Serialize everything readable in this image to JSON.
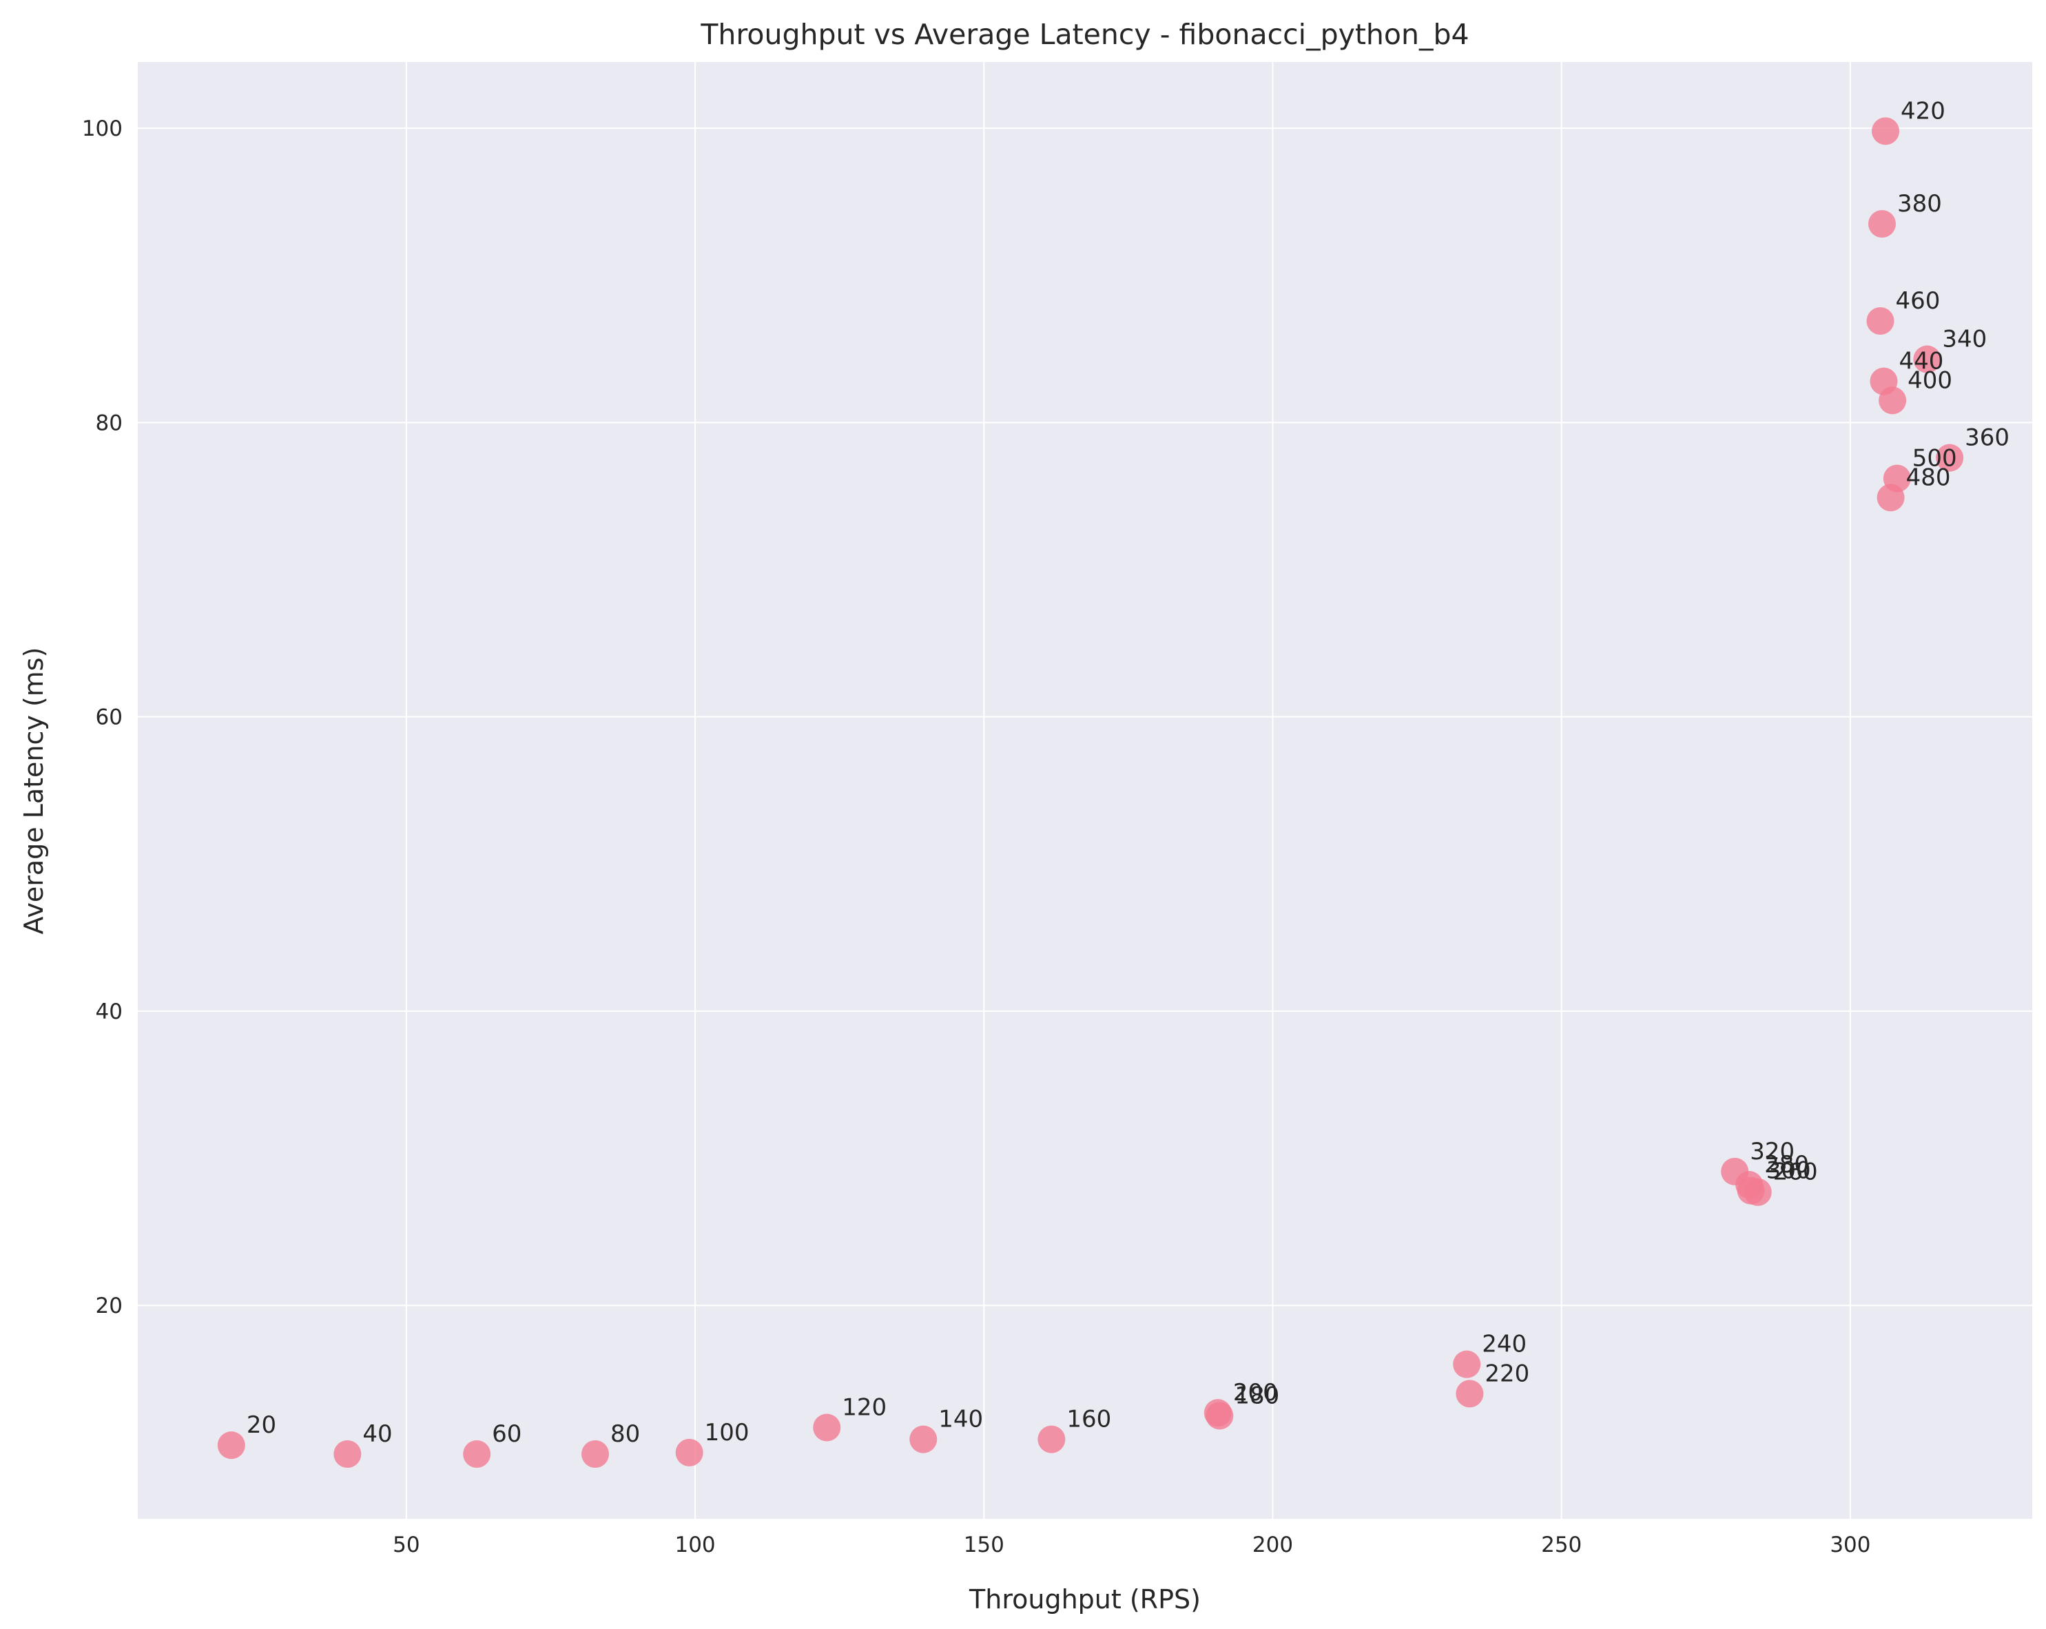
{
  "chart_data": {
    "type": "scatter",
    "title": "Throughput vs Average Latency - fibonacci_python_b4",
    "xlabel": "Throughput (RPS)",
    "ylabel": "Average Latency (ms)",
    "xlim": [
      3.5,
      331.5
    ],
    "ylim": [
      5.5,
      104.5
    ],
    "xticks": [
      "50",
      "100",
      "150",
      "200",
      "250",
      "300"
    ],
    "yticks": [
      "20",
      "40",
      "60",
      "80",
      "100"
    ],
    "grid": true,
    "legend": "none",
    "point_color": "#f37b91",
    "background_color": "#eaeaf2",
    "points": [
      {
        "label": "20",
        "x": 19.7,
        "y": 10.5
      },
      {
        "label": "40",
        "x": 39.8,
        "y": 9.9
      },
      {
        "label": "60",
        "x": 62.2,
        "y": 9.9
      },
      {
        "label": "80",
        "x": 82.7,
        "y": 9.9
      },
      {
        "label": "100",
        "x": 99.0,
        "y": 10.0
      },
      {
        "label": "120",
        "x": 122.8,
        "y": 11.7
      },
      {
        "label": "140",
        "x": 139.5,
        "y": 10.9
      },
      {
        "label": "160",
        "x": 161.7,
        "y": 10.9
      },
      {
        "label": "180",
        "x": 190.8,
        "y": 12.5
      },
      {
        "label": "200",
        "x": 190.5,
        "y": 12.7
      },
      {
        "label": "220",
        "x": 234.1,
        "y": 14.0
      },
      {
        "label": "240",
        "x": 233.6,
        "y": 16.0
      },
      {
        "label": "260",
        "x": 284.0,
        "y": 27.7
      },
      {
        "label": "280",
        "x": 282.5,
        "y": 28.2
      },
      {
        "label": "300",
        "x": 282.8,
        "y": 27.8
      },
      {
        "label": "320",
        "x": 280.0,
        "y": 29.1
      },
      {
        "label": "340",
        "x": 313.3,
        "y": 84.3
      },
      {
        "label": "360",
        "x": 317.2,
        "y": 77.6
      },
      {
        "label": "380",
        "x": 305.5,
        "y": 93.5
      },
      {
        "label": "400",
        "x": 307.3,
        "y": 81.5
      },
      {
        "label": "420",
        "x": 306.1,
        "y": 99.8
      },
      {
        "label": "440",
        "x": 305.8,
        "y": 82.8
      },
      {
        "label": "460",
        "x": 305.2,
        "y": 86.9
      },
      {
        "label": "480",
        "x": 307.0,
        "y": 74.9
      },
      {
        "label": "500",
        "x": 308.1,
        "y": 76.2
      }
    ]
  }
}
